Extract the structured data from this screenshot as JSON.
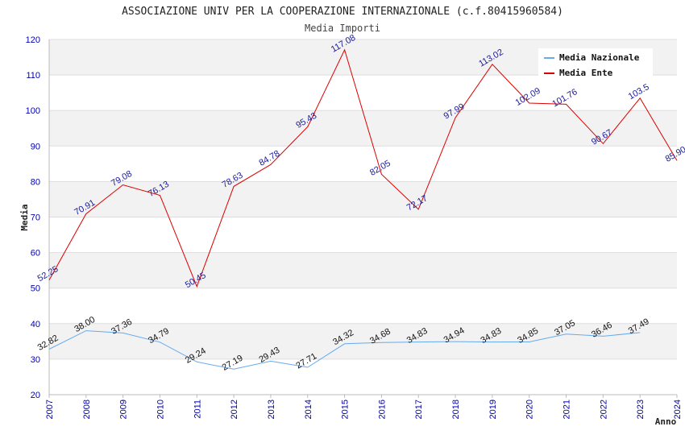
{
  "chart_data": {
    "type": "line",
    "title": "ASSOCIAZIONE UNIV PER LA COOPERAZIONE INTERNAZIONALE (c.f.80415960584)",
    "subtitle": "Media Importi",
    "xlabel": "Anno",
    "ylabel": "Media",
    "ylim": [
      20,
      120
    ],
    "yticks": [
      20,
      30,
      40,
      50,
      60,
      70,
      80,
      90,
      100,
      110,
      120
    ],
    "x": [
      "2007",
      "2008",
      "2009",
      "2010",
      "2011",
      "2012",
      "2013",
      "2014",
      "2015",
      "2016",
      "2017",
      "2018",
      "2019",
      "2020",
      "2021",
      "2022",
      "2023",
      "2024"
    ],
    "grid": true,
    "legend_position": "top-right",
    "series": [
      {
        "name": "Media Nazionale",
        "color": "#66aaee",
        "values": [
          32.82,
          38.0,
          37.36,
          34.79,
          29.24,
          27.19,
          29.43,
          27.71,
          34.32,
          34.68,
          34.83,
          34.94,
          34.83,
          34.85,
          37.05,
          36.46,
          37.49,
          null
        ],
        "labels": [
          "32.82",
          "38.00",
          "37.36",
          "34.79",
          "29.24",
          "27.19",
          "29.43",
          "27.71",
          "34.32",
          "34.68",
          "34.83",
          "34.94",
          "34.83",
          "34.85",
          "37.05",
          "36.46",
          "37.49",
          null
        ]
      },
      {
        "name": "Media Ente",
        "color": "#dd0000",
        "values": [
          52.25,
          70.91,
          79.08,
          76.13,
          50.45,
          78.63,
          84.78,
          95.43,
          117.08,
          82.05,
          72.17,
          97.99,
          113.02,
          102.09,
          101.76,
          90.67,
          103.5,
          85.9
        ],
        "labels": [
          "52.25",
          "70.91",
          "79.08",
          "76.13",
          "50.45",
          "78.63",
          "84.78",
          "95.43",
          "117.08",
          "82.05",
          "72.17",
          "97.99",
          "113.02",
          "102.09",
          "101.76",
          "90.67",
          "103.5",
          "85.90"
        ]
      }
    ]
  }
}
